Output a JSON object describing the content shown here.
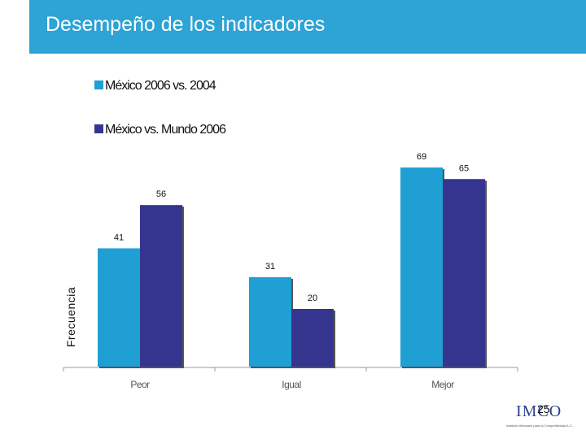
{
  "header": {
    "title": "Desempeño de los indicadores"
  },
  "colors": {
    "header_bg": "#2ea3d5",
    "series1": "#1f9fd3",
    "series2": "#35358f"
  },
  "chart_data": {
    "type": "bar",
    "title": "",
    "xlabel": "",
    "ylabel": "Frecuencia",
    "ylim": [
      0,
      80
    ],
    "categories": [
      "Peor",
      "Igual",
      "Mejor"
    ],
    "series": [
      {
        "name": "México 2006 vs. 2004",
        "values": [
          41,
          31,
          69
        ]
      },
      {
        "name": "México vs. Mundo 2006",
        "values": [
          56,
          20,
          65
        ]
      }
    ],
    "grid": false,
    "legend": "top-left"
  },
  "footer": {
    "page_number": "25",
    "logo_text": "IMCO",
    "logo_subtitle": "Instituto Mexicano para la Competitividad A.C."
  }
}
